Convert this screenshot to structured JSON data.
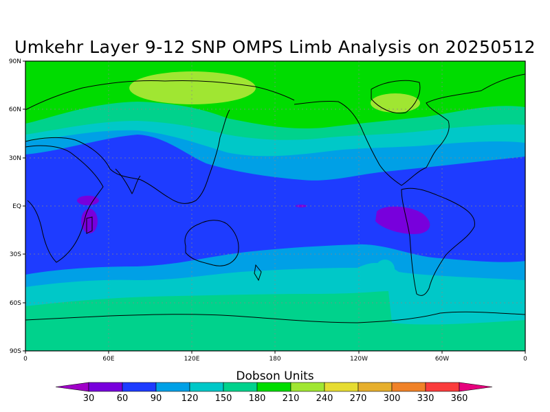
{
  "title": "Umkehr Layer 9-12 SNP OMPS Limb Analysis on 20250512",
  "lat_labels": [
    "90N",
    "60N",
    "30N",
    "EQ",
    "30S",
    "60S",
    "90S"
  ],
  "lon_labels": [
    "0",
    "60E",
    "120E",
    "180",
    "120W",
    "60W",
    "0"
  ],
  "colorbar": {
    "title": "Dobson Units",
    "levels": [
      "30",
      "60",
      "90",
      "120",
      "150",
      "180",
      "210",
      "240",
      "270",
      "300",
      "330",
      "360"
    ],
    "colors": [
      "#a000c8",
      "#7800dc",
      "#1e3cff",
      "#00a0e6",
      "#00c8c8",
      "#00d28c",
      "#00dc00",
      "#a0e632",
      "#e6dc32",
      "#e6af2d",
      "#f08228",
      "#fa3c3c",
      "#e6007d"
    ]
  },
  "chart_data": {
    "type": "heatmap",
    "map_extent": {
      "lon": [
        0,
        360
      ],
      "lat": [
        -90,
        90
      ]
    },
    "field_bands": [
      {
        "lat_range": [
          60,
          90
        ],
        "value_range": [
          180,
          210
        ]
      },
      {
        "lat_range": [
          45,
          60
        ],
        "value_range": [
          150,
          180
        ]
      },
      {
        "lat_range": [
          30,
          45
        ],
        "value_range": [
          90,
          150
        ]
      },
      {
        "lat_range": [
          -35,
          30
        ],
        "value_range": [
          60,
          90
        ]
      },
      {
        "lat_range": [
          -55,
          -35
        ],
        "value_range": [
          90,
          150
        ]
      },
      {
        "lat_range": [
          -90,
          -55
        ],
        "value_range": [
          150,
          180
        ]
      }
    ],
    "local_features": [
      {
        "lon": 105,
        "lat": 80,
        "value_range": [
          210,
          240
        ]
      },
      {
        "lon": 300,
        "lat": 65,
        "value_range": [
          210,
          240
        ]
      },
      {
        "lon": 50,
        "lat": 2,
        "value_range": [
          30,
          60
        ]
      },
      {
        "lon": 280,
        "lat": -10,
        "value_range": [
          30,
          60
        ]
      }
    ]
  }
}
